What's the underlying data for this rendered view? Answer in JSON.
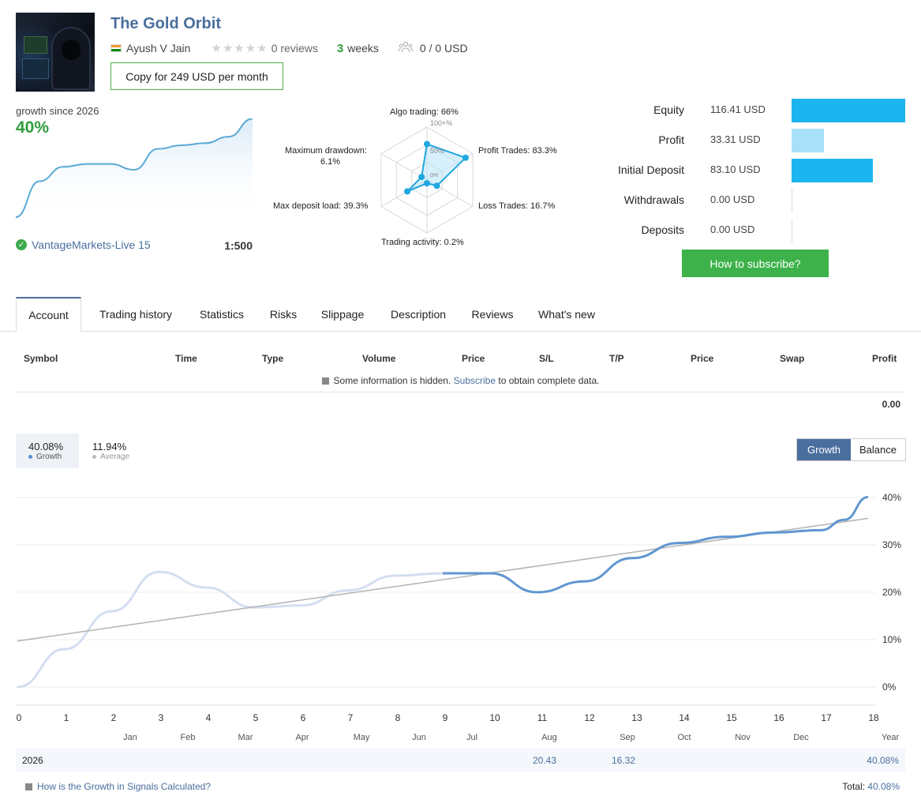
{
  "header": {
    "title": "The Gold Orbit",
    "author": "Ayush V Jain",
    "reviews": "0 reviews",
    "weeks_num": "3",
    "weeks_label": "weeks",
    "subscribers": "0 / 0 USD",
    "copy_button": "Copy for 249 USD per month"
  },
  "summary": {
    "growth_since": "growth since 2026",
    "growth_pct": "40%",
    "broker": "VantageMarkets-Live 15",
    "leverage": "1:500",
    "mini_series": [
      0,
      5,
      7,
      7.4,
      7.4,
      6.6,
      9.5,
      10.0,
      10.3,
      11.2,
      13.7
    ]
  },
  "radar": {
    "algo": "Algo trading: 66%",
    "profit": "Profit Trades: 83.3%",
    "loss": "Loss Trades: 16.7%",
    "activity": "Trading activity: 0.2%",
    "deposit_load": "Max deposit load: 39.3%",
    "drawdown": "Maximum drawdown:",
    "drawdown_val": "6.1%",
    "scale_100": "100+%",
    "scale_50": "50%",
    "scale_0": "0%",
    "values": [
      66,
      83.3,
      16.7,
      0.2,
      39.3,
      6.1
    ]
  },
  "stats": [
    {
      "label": "Equity",
      "value": "116.41 USD",
      "amount": 116.41,
      "color": "#1cb5f0"
    },
    {
      "label": "Profit",
      "value": "33.31 USD",
      "amount": 33.31,
      "color": "#a8e0f8"
    },
    {
      "label": "Initial Deposit",
      "value": "83.10 USD",
      "amount": 83.1,
      "color": "#1cb5f0"
    },
    {
      "label": "Withdrawals",
      "value": "0.00 USD",
      "amount": 0,
      "color": "#1cb5f0"
    },
    {
      "label": "Deposits",
      "value": "0.00 USD",
      "amount": 0,
      "color": "#1cb5f0"
    }
  ],
  "subscribe_button": "How to subscribe?",
  "tabs": [
    "Account",
    "Trading history",
    "Statistics",
    "Risks",
    "Slippage",
    "Description",
    "Reviews",
    "What's new"
  ],
  "table": {
    "headers": [
      "Symbol",
      "Time",
      "Type",
      "Volume",
      "Price",
      "S/L",
      "T/P",
      "Price",
      "Swap",
      "Profit"
    ],
    "hidden_pre": "Some information is hidden.",
    "hidden_link": "Subscribe",
    "hidden_post": "to obtain complete data.",
    "total_profit": "0.00"
  },
  "growth_panel": {
    "growth_value": "40.08%",
    "growth_label": "Growth",
    "average_value": "11.94%",
    "average_label": "Average",
    "toggle_growth": "Growth",
    "toggle_balance": "Balance"
  },
  "chart_data": {
    "type": "line",
    "x_ticks": [
      "0",
      "1",
      "2",
      "3",
      "4",
      "5",
      "6",
      "7",
      "8",
      "9",
      "10",
      "11",
      "12",
      "13",
      "14",
      "15",
      "16",
      "17",
      "18"
    ],
    "month_labels": [
      "Jan",
      "Feb",
      "Mar",
      "Apr",
      "May",
      "Jun",
      "Jul",
      "Aug",
      "Sep",
      "Oct",
      "Nov",
      "Dec",
      "Year"
    ],
    "y_ticks": [
      "0%",
      "10%",
      "20%",
      "30%",
      "40%"
    ],
    "ylim": [
      0,
      40
    ],
    "series": [
      {
        "x": [
          0,
          1,
          2,
          3,
          4,
          5,
          6,
          7,
          8,
          9
        ],
        "values": [
          0,
          8,
          16,
          24.3,
          21,
          16.8,
          17.2,
          20.4,
          23.5,
          24
        ]
      },
      {
        "x": [
          9,
          10,
          11,
          12,
          13,
          14,
          15,
          16,
          17,
          17.5,
          18
        ],
        "values": [
          24,
          24,
          20,
          22.3,
          27.2,
          30.4,
          31.7,
          32.6,
          33.1,
          35.3,
          40.1
        ]
      },
      {
        "x": [
          0,
          18
        ],
        "values": [
          9.7,
          35.6
        ]
      }
    ]
  },
  "year_row": {
    "year": "2026",
    "aug": "20.43",
    "sep": "16.32",
    "total": "40.08%"
  },
  "footer": {
    "link": "How is the Growth in Signals Calculated?",
    "total_label": "Total:",
    "total_value": "40.08%"
  }
}
